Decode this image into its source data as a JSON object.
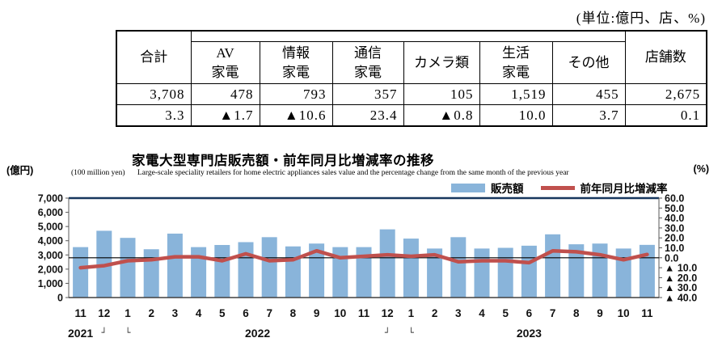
{
  "unit_note": "(単位:億円、店、%)",
  "table": {
    "headers": [
      "合計",
      "AV\n家電",
      "情報\n家電",
      "通信\n家電",
      "カメラ類",
      "生活\n家電",
      "その他",
      "店舗数"
    ],
    "values": [
      "3,708",
      "478",
      "793",
      "357",
      "105",
      "1,519",
      "455",
      "2,675"
    ],
    "changes": [
      "3.3",
      "▲1.7",
      "▲10.6",
      "23.4",
      "▲0.8",
      "10.0",
      "3.7",
      "0.1"
    ]
  },
  "chart_data": {
    "type": "bar+line",
    "title": "家電大型専門店販売額・前年同月比増減率の推移",
    "note_left_unit": "(億円)",
    "note_left_unit_en": "(100 million yen)",
    "subtitle_en": "Large-scale speciality retailers for home electric appliances sales value and the percentage change from the same month of the previous year",
    "note_right_unit": "(%)",
    "legend_position": "top-right",
    "grid": false,
    "categories": [
      "11",
      "12",
      "1",
      "2",
      "3",
      "4",
      "5",
      "6",
      "7",
      "8",
      "9",
      "10",
      "11",
      "12",
      "1",
      "2",
      "3",
      "4",
      "5",
      "6",
      "7",
      "8",
      "9",
      "10",
      "11"
    ],
    "year_row": [
      {
        "text": "2021",
        "slot": 0
      },
      {
        "text": "┘",
        "slot": 1
      },
      {
        "text": "└",
        "slot": 2
      },
      {
        "text": "2022",
        "slot": 7.5
      },
      {
        "text": "┘",
        "slot": 13
      },
      {
        "text": "└",
        "slot": 14
      },
      {
        "text": "2023",
        "slot": 19
      }
    ],
    "series": [
      {
        "name": "販売額",
        "type": "bar",
        "axis": "left",
        "color": "#89B4DA",
        "values": [
          3550,
          4700,
          4200,
          3400,
          4500,
          3550,
          3700,
          3900,
          4250,
          3600,
          3800,
          3550,
          3550,
          4800,
          4150,
          3450,
          4250,
          3450,
          3500,
          3650,
          4450,
          3750,
          3800,
          3450,
          3708
        ]
      },
      {
        "name": "前年同月比増減率",
        "type": "line",
        "axis": "right",
        "color": "#C0504D",
        "values": [
          -10,
          -8,
          -3,
          -2,
          1,
          1,
          -3,
          4,
          -3,
          -2,
          7,
          0,
          1.5,
          3,
          1.5,
          3,
          -4,
          -3,
          -3,
          -5,
          7,
          6,
          3,
          -2,
          3.3
        ]
      }
    ],
    "left_axis": {
      "min": 0,
      "max": 7000,
      "step": 1000,
      "tick_labels": [
        "7,000",
        "6,000",
        "5,000",
        "4,000",
        "3,000",
        "2,000",
        "1,000",
        "0"
      ]
    },
    "right_axis": {
      "min": -40,
      "max": 60,
      "step": 10,
      "tick_labels": [
        "60.0",
        "50.0",
        "40.0",
        "30.0",
        "20.0",
        "10.0",
        "0.0",
        "▲ 10.0",
        "▲ 20.0",
        "▲ 30.0",
        "▲ 40.0"
      ]
    }
  }
}
